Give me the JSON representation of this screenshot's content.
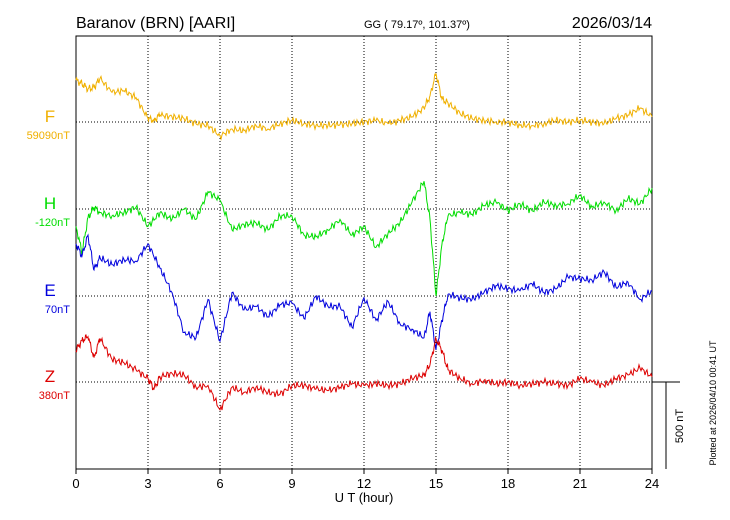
{
  "chart_data": {
    "type": "line",
    "title": "Baranov (BRN)  [AARI]",
    "subtitle": "GG ( 79.17º, 101.37º)",
    "date": "2026/03/14",
    "xlabel": "U T (hour)",
    "xlim": [
      0,
      24
    ],
    "xticks": [
      "0",
      "3",
      "6",
      "9",
      "12",
      "15",
      "18",
      "21",
      "24"
    ],
    "grid": true,
    "scale_bar_label": "500 nT",
    "scale_bar_nT": 500,
    "plotted_note": "Plotted at 2026/04/10 00:41 UT",
    "series": [
      {
        "name": "F",
        "baseline_label": "59090nT",
        "color": "#f0b000",
        "x": [
          0,
          0.25,
          0.5,
          0.75,
          1,
          1.5,
          2,
          2.5,
          3,
          3.25,
          3.5,
          4,
          4.5,
          5,
          5.5,
          6,
          6.5,
          7,
          7.5,
          8,
          8.5,
          9,
          9.5,
          10,
          10.5,
          11,
          11.5,
          12,
          12.5,
          13,
          13.5,
          14,
          14.5,
          14.75,
          15,
          15.25,
          15.5,
          16,
          16.5,
          17,
          17.5,
          18,
          18.5,
          19,
          19.5,
          20,
          20.5,
          21,
          21.5,
          22,
          22.5,
          23,
          23.5,
          24
        ],
        "y": [
          240,
          220,
          190,
          200,
          250,
          170,
          180,
          140,
          20,
          10,
          40,
          30,
          20,
          -10,
          -20,
          -80,
          -40,
          -50,
          -20,
          -40,
          -10,
          10,
          -10,
          -20,
          -20,
          -15,
          -10,
          0,
          10,
          -10,
          10,
          30,
          80,
          150,
          280,
          130,
          110,
          50,
          20,
          10,
          0,
          0,
          -20,
          -20,
          -10,
          10,
          0,
          10,
          0,
          -10,
          20,
          40,
          80,
          30
        ]
      },
      {
        "name": "H",
        "baseline_label": "-120nT",
        "color": "#00dd00",
        "x": [
          0,
          0.25,
          0.5,
          0.75,
          1,
          1.5,
          2,
          2.5,
          3,
          3.5,
          4,
          4.5,
          5,
          5.5,
          6,
          6.5,
          7,
          7.5,
          8,
          8.5,
          9,
          9.5,
          10,
          10.5,
          11,
          11.5,
          12,
          12.5,
          13,
          13.5,
          14,
          14.5,
          14.75,
          15,
          15.25,
          15.5,
          16,
          16.5,
          17,
          17.5,
          18,
          18.5,
          19,
          19.5,
          20,
          20.5,
          21,
          21.5,
          22,
          22.5,
          23,
          23.5,
          24
        ],
        "y": [
          -100,
          -250,
          -50,
          10,
          -20,
          -40,
          -20,
          10,
          -100,
          -20,
          -60,
          0,
          -60,
          100,
          50,
          -120,
          -90,
          -80,
          -120,
          -40,
          -40,
          -150,
          -160,
          -120,
          -60,
          -150,
          -100,
          -220,
          -140,
          -80,
          40,
          160,
          -60,
          -500,
          -200,
          -40,
          -20,
          -30,
          20,
          40,
          -10,
          30,
          -10,
          40,
          20,
          30,
          80,
          10,
          40,
          -10,
          60,
          30,
          120
        ]
      },
      {
        "name": "E",
        "baseline_label": "70nT",
        "color": "#0000dd",
        "x": [
          0,
          0.25,
          0.5,
          0.75,
          1,
          1.5,
          2,
          2.5,
          3,
          3.5,
          4,
          4.5,
          5,
          5.5,
          6,
          6.5,
          7,
          7.5,
          8,
          8.5,
          9,
          9.5,
          10,
          10.5,
          11,
          11.5,
          12,
          12.5,
          13,
          13.5,
          14,
          14.5,
          14.75,
          15,
          15.25,
          15.5,
          16,
          16.5,
          17,
          17.5,
          18,
          18.5,
          19,
          19.5,
          20,
          20.5,
          21,
          21.5,
          22,
          22.5,
          23,
          23.5,
          24
        ],
        "y": [
          300,
          230,
          350,
          150,
          220,
          180,
          210,
          200,
          300,
          160,
          20,
          -210,
          -240,
          -20,
          -260,
          20,
          -80,
          -60,
          -120,
          -50,
          -40,
          -130,
          0,
          -60,
          -60,
          -180,
          -10,
          -140,
          -30,
          -160,
          -190,
          -240,
          -90,
          -310,
          -140,
          10,
          -10,
          -20,
          20,
          60,
          40,
          30,
          70,
          20,
          40,
          110,
          100,
          90,
          140,
          50,
          80,
          -20,
          30
        ]
      },
      {
        "name": "Z",
        "baseline_label": "380nT",
        "color": "#dd0000",
        "x": [
          0,
          0.25,
          0.5,
          0.75,
          1,
          1.5,
          2,
          2.5,
          3,
          3.25,
          3.5,
          4,
          4.5,
          5,
          5.5,
          6,
          6.5,
          7,
          7.5,
          8,
          8.5,
          9,
          9.5,
          10,
          10.5,
          11,
          11.5,
          12,
          12.5,
          13,
          13.5,
          14,
          14.5,
          14.75,
          15,
          15.25,
          15.5,
          16,
          16.5,
          17,
          17.5,
          18,
          18.5,
          19,
          19.5,
          20,
          20.5,
          21,
          21.5,
          22,
          22.5,
          23,
          23.5,
          24
        ],
        "y": [
          180,
          240,
          260,
          140,
          250,
          130,
          110,
          70,
          20,
          -40,
          30,
          50,
          40,
          -30,
          -20,
          -160,
          -30,
          -60,
          -30,
          -60,
          -70,
          -20,
          -20,
          -40,
          -50,
          -30,
          -10,
          -20,
          -10,
          -20,
          -10,
          20,
          40,
          100,
          250,
          180,
          70,
          20,
          -10,
          10,
          -10,
          0,
          -20,
          -10,
          0,
          -10,
          -20,
          20,
          0,
          -20,
          20,
          40,
          80,
          30
        ]
      }
    ]
  }
}
